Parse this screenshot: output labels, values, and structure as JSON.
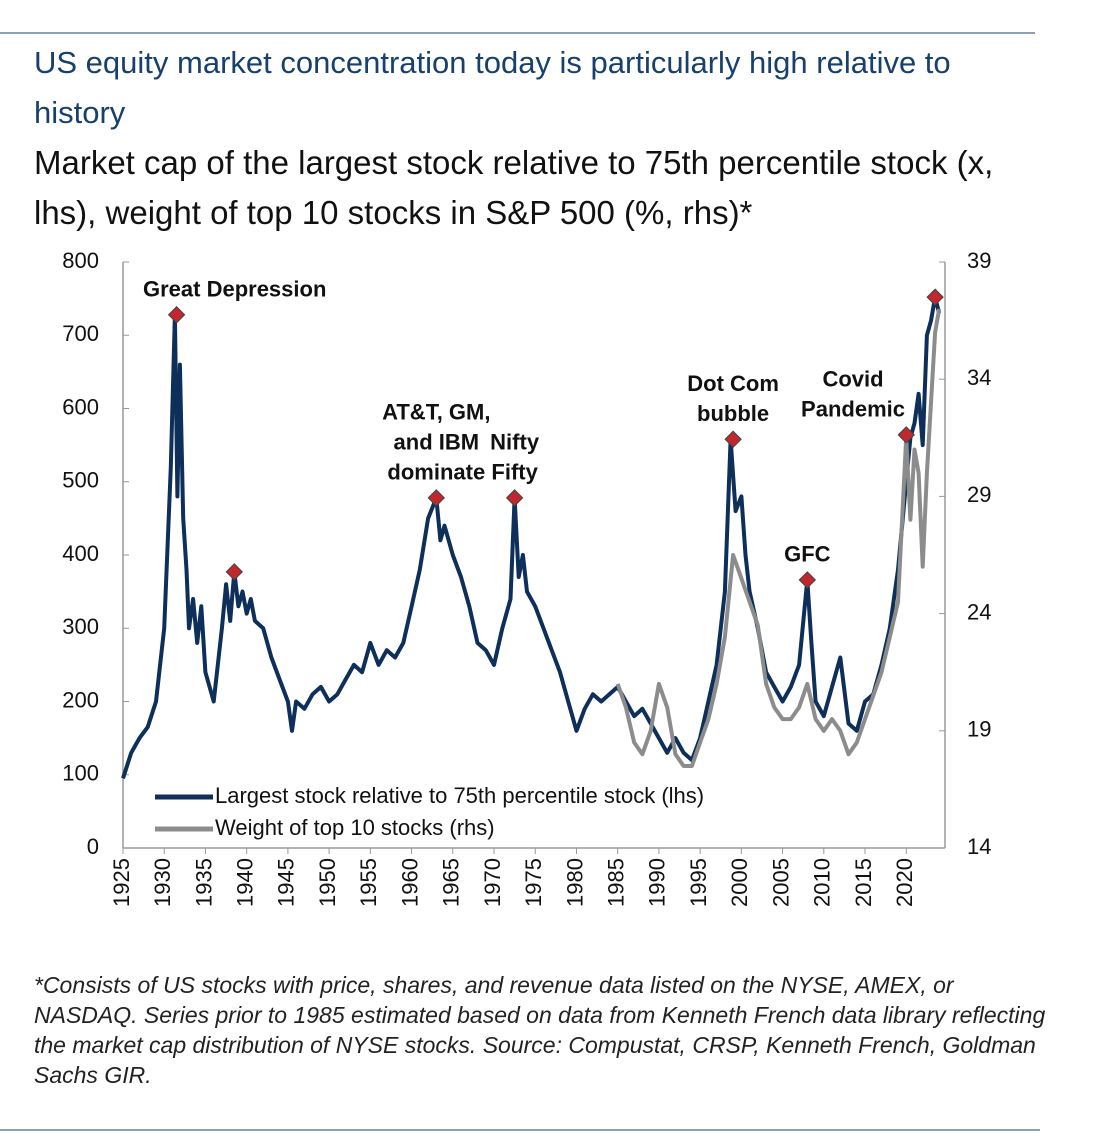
{
  "chart_data": {
    "type": "line",
    "title": "US equity market concentration today is particularly high relative to history",
    "subtitle": "Market cap of the largest stock relative to 75th percentile stock (x, lhs), weight of top 10 stocks in S&P 500 (%, rhs)*",
    "footnote": "*Consists of US stocks with price, shares, and revenue data listed on the NYSE, AMEX, or NASDAQ. Series prior to 1985 estimated based on data from Kenneth French data library reflecting the market cap distribution of NYSE stocks. Source: Compustat, CRSP, Kenneth French, Goldman Sachs GIR.",
    "xlim": [
      1925,
      2024.7
    ],
    "xticks": [
      1925,
      1930,
      1935,
      1940,
      1945,
      1950,
      1955,
      1960,
      1965,
      1970,
      1975,
      1980,
      1985,
      1990,
      1995,
      2000,
      2005,
      2010,
      2015,
      2020
    ],
    "ylim": [
      0,
      800
    ],
    "yticks": [
      0,
      100,
      200,
      300,
      400,
      500,
      600,
      700,
      800
    ],
    "y2lim": [
      14,
      39
    ],
    "y2ticks": [
      14,
      19,
      24,
      29,
      34,
      39
    ],
    "legend": "lower left",
    "marker_color": "#c0282d",
    "series": [
      {
        "name": "Largest stock relative to 75th percentile stock (lhs)",
        "color": "#0d2f5a",
        "x": [
          1925,
          1926,
          1927,
          1928,
          1929,
          1930,
          1930.8,
          1931.3,
          1931.6,
          1931.9,
          1932.3,
          1932.7,
          1933,
          1933.5,
          1934,
          1934.5,
          1935,
          1935.5,
          1936,
          1936.5,
          1937,
          1937.5,
          1938,
          1938.5,
          1939,
          1939.5,
          1940,
          1940.5,
          1941,
          1942,
          1943,
          1944,
          1945,
          1945.5,
          1946,
          1947,
          1948,
          1949,
          1950,
          1951,
          1952,
          1953,
          1954,
          1955,
          1956,
          1957,
          1958,
          1959,
          1960,
          1961,
          1962,
          1963,
          1963.5,
          1964,
          1965,
          1966,
          1967,
          1968,
          1969,
          1970,
          1971,
          1972,
          1972.5,
          1973,
          1973.5,
          1974,
          1975,
          1976,
          1977,
          1978,
          1979,
          1980,
          1981,
          1982,
          1983,
          1984,
          1985,
          1986,
          1987,
          1988,
          1989,
          1990,
          1991,
          1992,
          1993,
          1994,
          1995,
          1996,
          1997,
          1998,
          1998.7,
          1999.3,
          2000,
          2000.5,
          2001,
          2002,
          2003,
          2004,
          2005,
          2006,
          2007,
          2008,
          2008.5,
          2009,
          2010,
          2011,
          2012,
          2013,
          2014,
          2015,
          2016,
          2017,
          2018,
          2019,
          2020,
          2020.5,
          2021,
          2021.5,
          2022,
          2022.5,
          2023,
          2023.5,
          2024
        ],
        "values": [
          95,
          130,
          150,
          165,
          200,
          300,
          520,
          728,
          480,
          660,
          450,
          380,
          300,
          340,
          280,
          330,
          240,
          220,
          200,
          250,
          300,
          360,
          310,
          377,
          330,
          350,
          320,
          340,
          310,
          300,
          260,
          230,
          200,
          160,
          200,
          190,
          210,
          220,
          200,
          210,
          230,
          250,
          240,
          280,
          250,
          270,
          260,
          280,
          330,
          380,
          450,
          478,
          420,
          440,
          400,
          370,
          330,
          280,
          270,
          250,
          300,
          340,
          478,
          370,
          400,
          350,
          330,
          300,
          270,
          240,
          200,
          160,
          190,
          210,
          200,
          210,
          220,
          200,
          180,
          190,
          170,
          150,
          130,
          150,
          130,
          120,
          150,
          200,
          250,
          350,
          558,
          460,
          480,
          400,
          350,
          300,
          240,
          220,
          200,
          220,
          250,
          366,
          280,
          200,
          180,
          220,
          260,
          170,
          160,
          200,
          210,
          250,
          300,
          380,
          500,
          560,
          580,
          620,
          550,
          700,
          720,
          752,
          730
        ]
      },
      {
        "name": "Weight of top 10 stocks (rhs)",
        "color": "#8c8c8c",
        "axis": "y2",
        "x": [
          1985,
          1986,
          1987,
          1988,
          1989,
          1990,
          1991,
          1992,
          1993,
          1994,
          1995,
          1996,
          1997,
          1998,
          1999,
          2000,
          2001,
          2002,
          2003,
          2004,
          2005,
          2006,
          2007,
          2008,
          2009,
          2010,
          2011,
          2012,
          2013,
          2014,
          2015,
          2016,
          2017,
          2018,
          2019,
          2020,
          2020.5,
          2021,
          2021.5,
          2022,
          2022.5,
          2023,
          2023.5,
          2024
        ],
        "values": [
          21,
          20,
          18.5,
          18,
          19,
          21,
          20,
          18,
          17.5,
          17.5,
          18.5,
          19.5,
          21,
          23,
          26.5,
          25.5,
          24.5,
          23.5,
          21,
          20,
          19.5,
          19.5,
          20,
          21,
          19.5,
          19,
          19.5,
          19,
          18,
          18.5,
          19.5,
          20.5,
          21.5,
          23,
          24.5,
          31.5,
          28,
          31,
          30,
          26,
          30,
          33,
          36,
          37
        ]
      }
    ],
    "annotations": [
      {
        "text": [
          "Great Depression"
        ],
        "x": 1931.5,
        "y": 728
      },
      {
        "x": 1938.5,
        "y": 377
      },
      {
        "text": [
          "AT&T, GM,",
          "and IBM",
          "dominate"
        ],
        "x": 1963,
        "y": 478
      },
      {
        "text": [
          "Nifty",
          "Fifty"
        ],
        "x": 1972.5,
        "y": 478
      },
      {
        "text": [
          "Dot Com",
          "bubble"
        ],
        "x": 1999,
        "y": 558
      },
      {
        "text": [
          "GFC"
        ],
        "x": 2008,
        "y": 366
      },
      {
        "text": [
          "Covid",
          "Pandemic"
        ],
        "x": 2020,
        "y": 564
      },
      {
        "x": 2023.5,
        "y": 752
      }
    ]
  }
}
